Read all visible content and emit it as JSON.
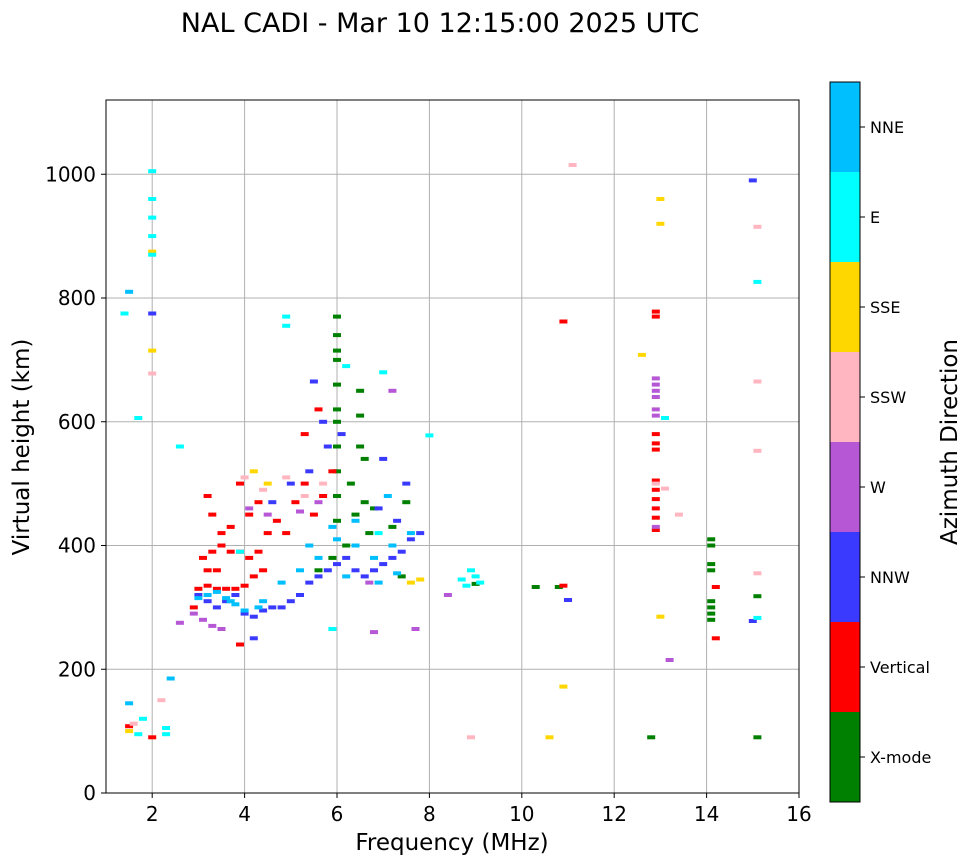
{
  "chart_data": {
    "type": "scatter",
    "title": "NAL CADI - Mar 10 12:15:00 2025 UTC",
    "xlabel": "Frequency (MHz)",
    "ylabel": "Virtual height (km)",
    "xlim": [
      1,
      16
    ],
    "ylim": [
      0,
      1120
    ],
    "xticks": [
      "2",
      "4",
      "6",
      "8",
      "10",
      "12",
      "14",
      "16"
    ],
    "yticks": [
      "0",
      "200",
      "400",
      "600",
      "800",
      "1000"
    ],
    "grid": true,
    "colorbar": {
      "label": "Azimuth Direction",
      "categories": [
        {
          "name": "X-mode",
          "color": "#008000"
        },
        {
          "name": "Vertical",
          "color": "#ff0000"
        },
        {
          "name": "NNW",
          "color": "#3a3aff"
        },
        {
          "name": "W",
          "color": "#b657d6"
        },
        {
          "name": "SSW",
          "color": "#ffb6c1"
        },
        {
          "name": "SSE",
          "color": "#ffd700"
        },
        {
          "name": "E",
          "color": "#00ffff"
        },
        {
          "name": "NNE",
          "color": "#00bfff"
        }
      ]
    },
    "series": [
      {
        "name": "X-mode",
        "points": [
          [
            6.0,
            770
          ],
          [
            6.0,
            740
          ],
          [
            6.0,
            715
          ],
          [
            6.0,
            700
          ],
          [
            6.0,
            660
          ],
          [
            6.0,
            620
          ],
          [
            6.0,
            600
          ],
          [
            6.0,
            560
          ],
          [
            6.0,
            520
          ],
          [
            6.0,
            480
          ],
          [
            6.0,
            440
          ],
          [
            6.5,
            650
          ],
          [
            6.5,
            610
          ],
          [
            6.5,
            560
          ],
          [
            6.3,
            500
          ],
          [
            6.6,
            470
          ],
          [
            6.4,
            450
          ],
          [
            6.7,
            420
          ],
          [
            6.8,
            460
          ],
          [
            7.2,
            430
          ],
          [
            7.5,
            470
          ],
          [
            6.2,
            400
          ],
          [
            5.9,
            380
          ],
          [
            5.6,
            360
          ],
          [
            7.4,
            350
          ],
          [
            6.6,
            540
          ],
          [
            10.3,
            333
          ],
          [
            10.8,
            333
          ],
          [
            9.0,
            338
          ],
          [
            12.8,
            90
          ],
          [
            14.1,
            410
          ],
          [
            14.1,
            400
          ],
          [
            14.1,
            370
          ],
          [
            14.1,
            360
          ],
          [
            14.1,
            310
          ],
          [
            14.1,
            300
          ],
          [
            14.1,
            290
          ],
          [
            14.1,
            280
          ],
          [
            15.1,
            318
          ],
          [
            15.1,
            90
          ]
        ]
      },
      {
        "name": "Vertical",
        "points": [
          [
            3.0,
            330
          ],
          [
            3.2,
            335
          ],
          [
            3.4,
            330
          ],
          [
            3.6,
            330
          ],
          [
            3.8,
            330
          ],
          [
            4.0,
            335
          ],
          [
            4.2,
            350
          ],
          [
            4.4,
            360
          ],
          [
            3.2,
            480
          ],
          [
            3.3,
            450
          ],
          [
            3.5,
            420
          ],
          [
            3.7,
            430
          ],
          [
            3.9,
            500
          ],
          [
            4.1,
            450
          ],
          [
            4.3,
            470
          ],
          [
            4.5,
            420
          ],
          [
            4.7,
            440
          ],
          [
            4.9,
            420
          ],
          [
            5.1,
            470
          ],
          [
            5.3,
            500
          ],
          [
            5.5,
            450
          ],
          [
            5.7,
            480
          ],
          [
            5.9,
            520
          ],
          [
            5.3,
            580
          ],
          [
            5.6,
            620
          ],
          [
            3.1,
            380
          ],
          [
            3.3,
            390
          ],
          [
            3.5,
            400
          ],
          [
            3.7,
            390
          ],
          [
            3.9,
            390
          ],
          [
            4.1,
            380
          ],
          [
            4.3,
            390
          ],
          [
            3.2,
            360
          ],
          [
            3.4,
            360
          ],
          [
            3.9,
            240
          ],
          [
            2.9,
            300
          ],
          [
            1.5,
            108
          ],
          [
            2.0,
            90
          ],
          [
            10.9,
            762
          ],
          [
            10.9,
            335
          ],
          [
            12.9,
            778
          ],
          [
            12.9,
            770
          ],
          [
            12.9,
            580
          ],
          [
            12.9,
            565
          ],
          [
            12.9,
            555
          ],
          [
            12.9,
            505
          ],
          [
            12.9,
            490
          ],
          [
            12.9,
            475
          ],
          [
            12.9,
            460
          ],
          [
            12.9,
            445
          ],
          [
            12.9,
            425
          ],
          [
            14.2,
            333
          ],
          [
            14.2,
            250
          ]
        ]
      },
      {
        "name": "NNW",
        "points": [
          [
            3.0,
            320
          ],
          [
            3.2,
            310
          ],
          [
            3.4,
            300
          ],
          [
            3.6,
            310
          ],
          [
            3.8,
            320
          ],
          [
            4.0,
            290
          ],
          [
            4.2,
            285
          ],
          [
            4.4,
            295
          ],
          [
            4.6,
            300
          ],
          [
            4.8,
            300
          ],
          [
            5.0,
            310
          ],
          [
            5.2,
            320
          ],
          [
            5.4,
            340
          ],
          [
            5.6,
            350
          ],
          [
            5.8,
            360
          ],
          [
            6.0,
            370
          ],
          [
            6.2,
            380
          ],
          [
            6.4,
            360
          ],
          [
            6.6,
            350
          ],
          [
            6.8,
            360
          ],
          [
            7.0,
            370
          ],
          [
            7.2,
            380
          ],
          [
            7.4,
            390
          ],
          [
            7.6,
            410
          ],
          [
            7.8,
            420
          ],
          [
            4.2,
            250
          ],
          [
            4.6,
            470
          ],
          [
            5.0,
            500
          ],
          [
            5.4,
            520
          ],
          [
            5.8,
            560
          ],
          [
            5.7,
            600
          ],
          [
            6.1,
            580
          ],
          [
            7.0,
            540
          ],
          [
            7.5,
            500
          ],
          [
            15.0,
            990
          ],
          [
            15.0,
            278
          ],
          [
            2.0,
            775
          ],
          [
            11.0,
            312
          ],
          [
            5.5,
            665
          ],
          [
            6.9,
            460
          ],
          [
            7.3,
            440
          ]
        ]
      },
      {
        "name": "W",
        "points": [
          [
            2.9,
            290
          ],
          [
            3.1,
            280
          ],
          [
            3.3,
            270
          ],
          [
            3.5,
            265
          ],
          [
            4.1,
            460
          ],
          [
            4.5,
            450
          ],
          [
            5.2,
            455
          ],
          [
            5.6,
            470
          ],
          [
            6.8,
            260
          ],
          [
            7.7,
            265
          ],
          [
            8.4,
            320
          ],
          [
            12.9,
            670
          ],
          [
            12.9,
            660
          ],
          [
            12.9,
            650
          ],
          [
            12.9,
            640
          ],
          [
            12.9,
            620
          ],
          [
            12.9,
            610
          ],
          [
            12.9,
            430
          ],
          [
            13.2,
            215
          ],
          [
            2.6,
            275
          ],
          [
            7.2,
            650
          ],
          [
            6.7,
            340
          ]
        ]
      },
      {
        "name": "SSW",
        "points": [
          [
            4.0,
            510
          ],
          [
            4.4,
            490
          ],
          [
            4.9,
            510
          ],
          [
            5.3,
            480
          ],
          [
            5.7,
            500
          ],
          [
            11.1,
            1015
          ],
          [
            12.9,
            500
          ],
          [
            13.1,
            492
          ],
          [
            13.4,
            450
          ],
          [
            15.1,
            915
          ],
          [
            15.1,
            665
          ],
          [
            15.1,
            553
          ],
          [
            15.1,
            355
          ],
          [
            2.0,
            678
          ],
          [
            8.9,
            90
          ],
          [
            1.6,
            112
          ],
          [
            2.2,
            150
          ]
        ]
      },
      {
        "name": "SSE",
        "points": [
          [
            4.2,
            520
          ],
          [
            4.5,
            500
          ],
          [
            7.6,
            340
          ],
          [
            7.8,
            345
          ],
          [
            13.0,
            960
          ],
          [
            13.0,
            920
          ],
          [
            12.6,
            708
          ],
          [
            13.0,
            285
          ],
          [
            10.9,
            172
          ],
          [
            10.6,
            90
          ],
          [
            2.0,
            715
          ],
          [
            1.5,
            100
          ],
          [
            2.0,
            875
          ]
        ]
      },
      {
        "name": "E",
        "points": [
          [
            2.0,
            1005
          ],
          [
            2.0,
            960
          ],
          [
            2.0,
            930
          ],
          [
            2.0,
            900
          ],
          [
            2.0,
            870
          ],
          [
            1.4,
            775
          ],
          [
            2.6,
            560
          ],
          [
            4.9,
            770
          ],
          [
            4.9,
            755
          ],
          [
            6.2,
            690
          ],
          [
            7.0,
            680
          ],
          [
            8.0,
            578
          ],
          [
            8.9,
            360
          ],
          [
            9.0,
            350
          ],
          [
            9.1,
            340
          ],
          [
            8.7,
            345
          ],
          [
            8.8,
            335
          ],
          [
            13.1,
            606
          ],
          [
            15.1,
            826
          ],
          [
            15.1,
            283
          ],
          [
            2.3,
            105
          ],
          [
            2.3,
            95
          ],
          [
            1.7,
            95
          ],
          [
            1.8,
            120
          ],
          [
            1.7,
            606
          ],
          [
            3.9,
            390
          ],
          [
            5.9,
            265
          ],
          [
            6.9,
            420
          ]
        ]
      },
      {
        "name": "NNE",
        "points": [
          [
            3.0,
            315
          ],
          [
            3.2,
            320
          ],
          [
            3.4,
            325
          ],
          [
            3.6,
            315
          ],
          [
            3.8,
            305
          ],
          [
            4.0,
            295
          ],
          [
            4.4,
            310
          ],
          [
            4.8,
            340
          ],
          [
            5.2,
            360
          ],
          [
            5.6,
            380
          ],
          [
            6.0,
            410
          ],
          [
            6.4,
            400
          ],
          [
            6.8,
            380
          ],
          [
            7.2,
            400
          ],
          [
            7.6,
            420
          ],
          [
            6.4,
            440
          ],
          [
            6.9,
            340
          ],
          [
            7.3,
            355
          ],
          [
            7.1,
            480
          ],
          [
            1.5,
            145
          ],
          [
            1.5,
            810
          ],
          [
            2.4,
            185
          ],
          [
            3.7,
            310
          ],
          [
            4.3,
            300
          ],
          [
            5.4,
            400
          ],
          [
            5.9,
            430
          ],
          [
            6.2,
            350
          ]
        ]
      }
    ]
  }
}
